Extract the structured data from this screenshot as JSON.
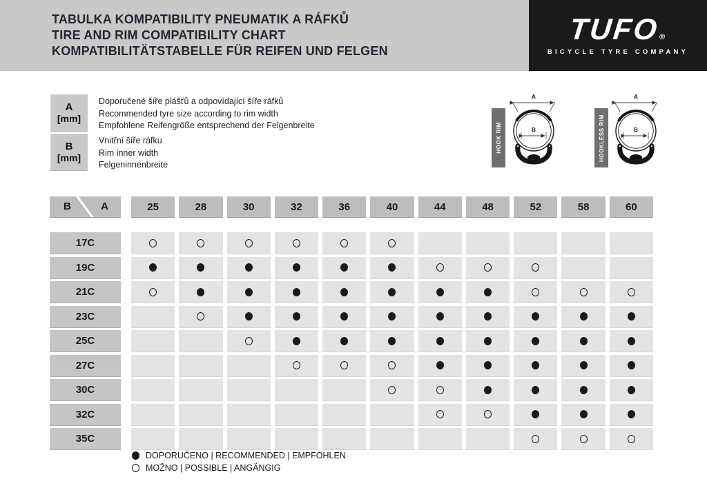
{
  "header": {
    "title_lines": [
      "TABULKA KOMPATIBILITY PNEUMATIK A RÁFKŮ",
      "TIRE AND RIM COMPATIBILITY CHART",
      "KOMPATIBILITÄTSTABELLE FÜR REIFEN UND FELGEN"
    ],
    "logo": {
      "brand": "TUFO",
      "registered": "®",
      "tagline": "BICYCLE TYRE COMPANY"
    }
  },
  "definitions": [
    {
      "symbol": "A",
      "unit": "[mm]",
      "lines": [
        "Doporučené šíře plášťů a odpovídající šíře ráfků",
        "Recommended tyre size according to rim width",
        "Empfohlene Reifengröße entsprechend der Felgenbreite"
      ]
    },
    {
      "symbol": "B",
      "unit": "[mm]",
      "lines": [
        "Vnitřní šíře ráfku",
        "Rim inner width",
        "Felgeninnenbreite"
      ]
    }
  ],
  "diagrams": [
    {
      "label": "HOOK RIM",
      "dims": [
        "A",
        "B"
      ]
    },
    {
      "label": "HOOKLESS RIM",
      "dims": [
        "A",
        "B"
      ]
    }
  ],
  "chart_data": {
    "type": "table",
    "corner": {
      "row_axis": "B",
      "col_axis": "A"
    },
    "columns": [
      "25",
      "28",
      "30",
      "32",
      "36",
      "40",
      "44",
      "48",
      "52",
      "58",
      "60"
    ],
    "rows": [
      {
        "label": "17C",
        "cells": [
          "P",
          "P",
          "P",
          "P",
          "P",
          "P",
          "",
          "",
          "",
          "",
          ""
        ]
      },
      {
        "label": "19C",
        "cells": [
          "R",
          "R",
          "R",
          "R",
          "R",
          "R",
          "P",
          "P",
          "P",
          "",
          ""
        ]
      },
      {
        "label": "21C",
        "cells": [
          "P",
          "R",
          "R",
          "R",
          "R",
          "R",
          "R",
          "R",
          "P",
          "P",
          "P"
        ]
      },
      {
        "label": "23C",
        "cells": [
          "",
          "P",
          "R",
          "R",
          "R",
          "R",
          "R",
          "R",
          "R",
          "R",
          "R"
        ]
      },
      {
        "label": "25C",
        "cells": [
          "",
          "",
          "P",
          "R",
          "R",
          "R",
          "R",
          "R",
          "R",
          "R",
          "R"
        ]
      },
      {
        "label": "27C",
        "cells": [
          "",
          "",
          "",
          "P",
          "P",
          "P",
          "R",
          "R",
          "R",
          "R",
          "R"
        ]
      },
      {
        "label": "30C",
        "cells": [
          "",
          "",
          "",
          "",
          "",
          "P",
          "P",
          "R",
          "R",
          "R",
          "R"
        ]
      },
      {
        "label": "32C",
        "cells": [
          "",
          "",
          "",
          "",
          "",
          "",
          "P",
          "P",
          "R",
          "R",
          "R"
        ]
      },
      {
        "label": "35C",
        "cells": [
          "",
          "",
          "",
          "",
          "",
          "",
          "",
          "",
          "P",
          "P",
          "P"
        ]
      }
    ],
    "legend": [
      {
        "symbol": "filled-circle",
        "label": "DOPORUČENO | RECOMMENDED | EMPFOHLEN"
      },
      {
        "symbol": "open-circle",
        "label": "MOŽNO | POSSIBLE | ANGÄNGIG"
      }
    ]
  },
  "colors": {
    "header_gray": "#c9c9c9",
    "cell_header_gray": "#bdbdbd",
    "row_header_gray": "#c5c5c5",
    "data_cell_gray": "#e3e3e3",
    "bar_gray": "#6f6f6f",
    "logo_black": "#1a1a1a",
    "title_text": "#1d2734"
  }
}
